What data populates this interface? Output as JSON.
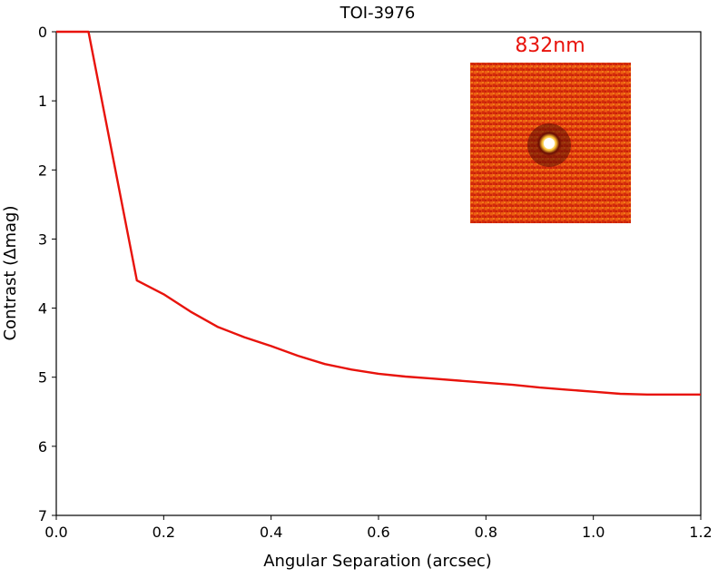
{
  "chart_data": {
    "type": "line",
    "title": "TOI-3976",
    "xlabel": "Angular Separation (arcsec)",
    "ylabel": "Contrast (Δmag)",
    "xlim": [
      0.0,
      1.2
    ],
    "ylim": [
      7,
      0
    ],
    "y_axis_inverted": true,
    "grid": false,
    "x_ticks": [
      "0.0",
      "0.2",
      "0.4",
      "0.6",
      "0.8",
      "1.0",
      "1.2"
    ],
    "y_ticks": [
      "0",
      "1",
      "2",
      "3",
      "4",
      "5",
      "6",
      "7"
    ],
    "series": [
      {
        "color": "#e8130c",
        "x": [
          0.0,
          0.06,
          0.15,
          0.2,
          0.25,
          0.3,
          0.35,
          0.4,
          0.45,
          0.5,
          0.55,
          0.6,
          0.65,
          0.7,
          0.75,
          0.8,
          0.85,
          0.9,
          0.95,
          1.0,
          1.05,
          1.1,
          1.15,
          1.2
        ],
        "y": [
          0.0,
          0.0,
          3.6,
          3.8,
          4.05,
          4.27,
          4.42,
          4.55,
          4.69,
          4.81,
          4.89,
          4.95,
          4.99,
          5.02,
          5.05,
          5.08,
          5.11,
          5.15,
          5.18,
          5.21,
          5.24,
          5.25,
          5.25,
          5.25
        ]
      }
    ],
    "inset": {
      "label": "832nm",
      "label_color": "#e8130c",
      "description_colors": {
        "background": "#e0400e",
        "source": "#fffbe6"
      }
    }
  }
}
